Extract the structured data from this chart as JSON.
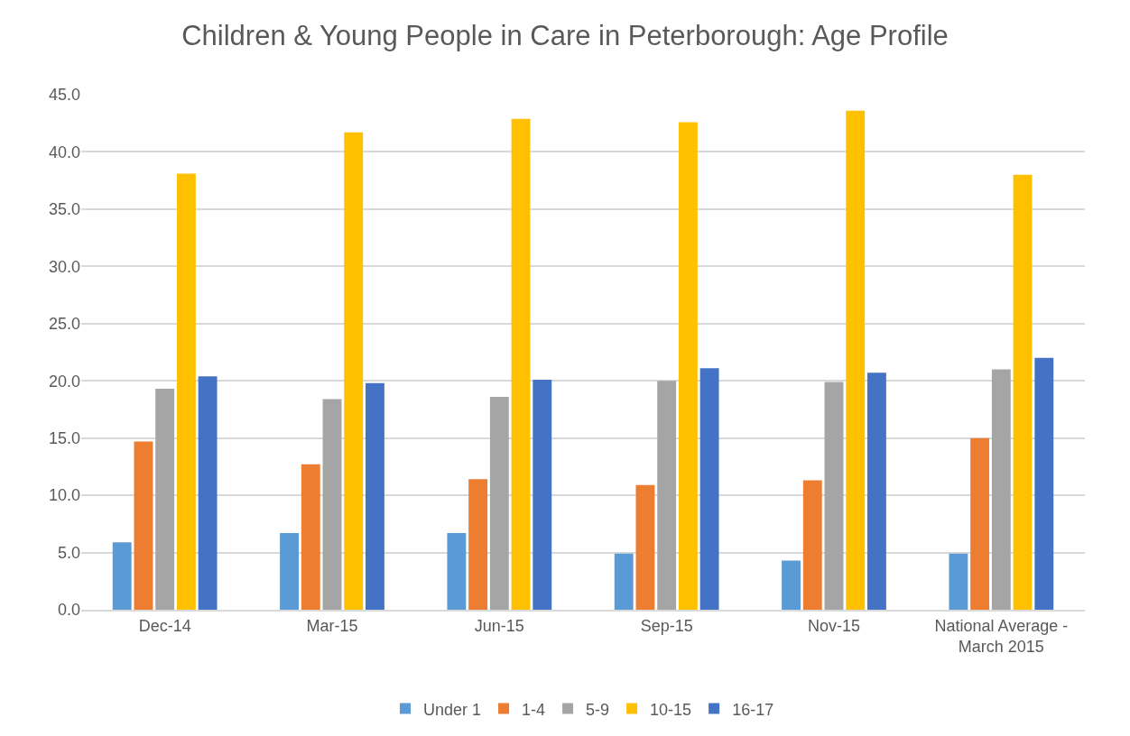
{
  "chart_data": {
    "type": "bar",
    "title": "Children & Young People in Care in Peterborough: Age Profile",
    "categories": [
      "Dec-14",
      "Mar-15",
      "Jun-15",
      "Sep-15",
      "Nov-15",
      "National Average - March 2015"
    ],
    "series": [
      {
        "name": "Under 1",
        "color": "#5b9bd5",
        "values": [
          5.9,
          6.7,
          6.7,
          4.9,
          4.3,
          4.9
        ]
      },
      {
        "name": "1-4",
        "color": "#ed7d31",
        "values": [
          14.7,
          12.7,
          11.4,
          10.9,
          11.3,
          15.0
        ]
      },
      {
        "name": "5-9",
        "color": "#a5a5a5",
        "values": [
          19.3,
          18.4,
          18.6,
          20.0,
          19.9,
          21.0
        ]
      },
      {
        "name": "10-15",
        "color": "#ffc000",
        "values": [
          38.1,
          41.7,
          42.9,
          42.6,
          43.6,
          38.0
        ]
      },
      {
        "name": "16-17",
        "color": "#4472c4",
        "values": [
          20.4,
          19.8,
          20.1,
          21.1,
          20.7,
          22.0
        ]
      }
    ],
    "ylim": [
      0,
      45
    ],
    "yticks": [
      {
        "value": 0,
        "label": "0.0"
      },
      {
        "value": 5,
        "label": "5.0"
      },
      {
        "value": 10,
        "label": "10.0"
      },
      {
        "value": 15,
        "label": "15.0"
      },
      {
        "value": 20,
        "label": "20.0"
      },
      {
        "value": 25,
        "label": "25.0"
      },
      {
        "value": 30,
        "label": "30.0"
      },
      {
        "value": 35,
        "label": "35.0"
      },
      {
        "value": 40,
        "label": "40.0"
      },
      {
        "value": 45,
        "label": "45.0"
      }
    ],
    "grid": "y",
    "legend": "bottom"
  }
}
